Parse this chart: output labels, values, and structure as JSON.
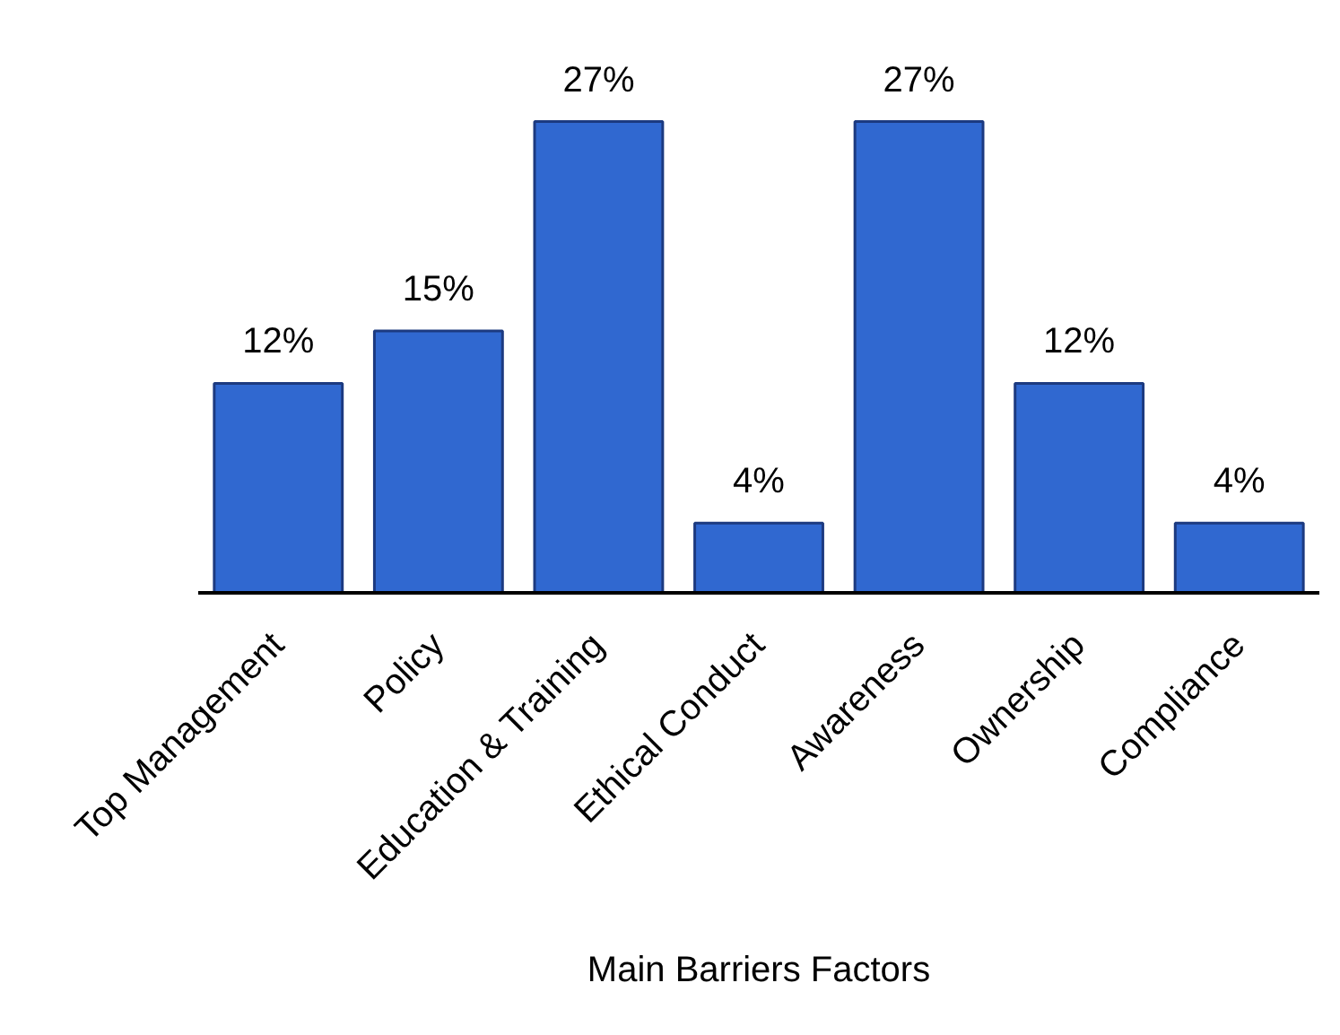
{
  "chart_data": {
    "type": "bar",
    "xlabel": "Main Barriers Factors",
    "categories": [
      "Top Management",
      "Policy",
      "Education & Training",
      "Ethical Conduct",
      "Awareness",
      "Ownership",
      "Compliance"
    ],
    "values": [
      12,
      15,
      27,
      4,
      27,
      12,
      4
    ],
    "value_labels": [
      "12%",
      "15%",
      "27%",
      "4%",
      "27%",
      "12%",
      "4%"
    ],
    "color": "#3068d0"
  }
}
